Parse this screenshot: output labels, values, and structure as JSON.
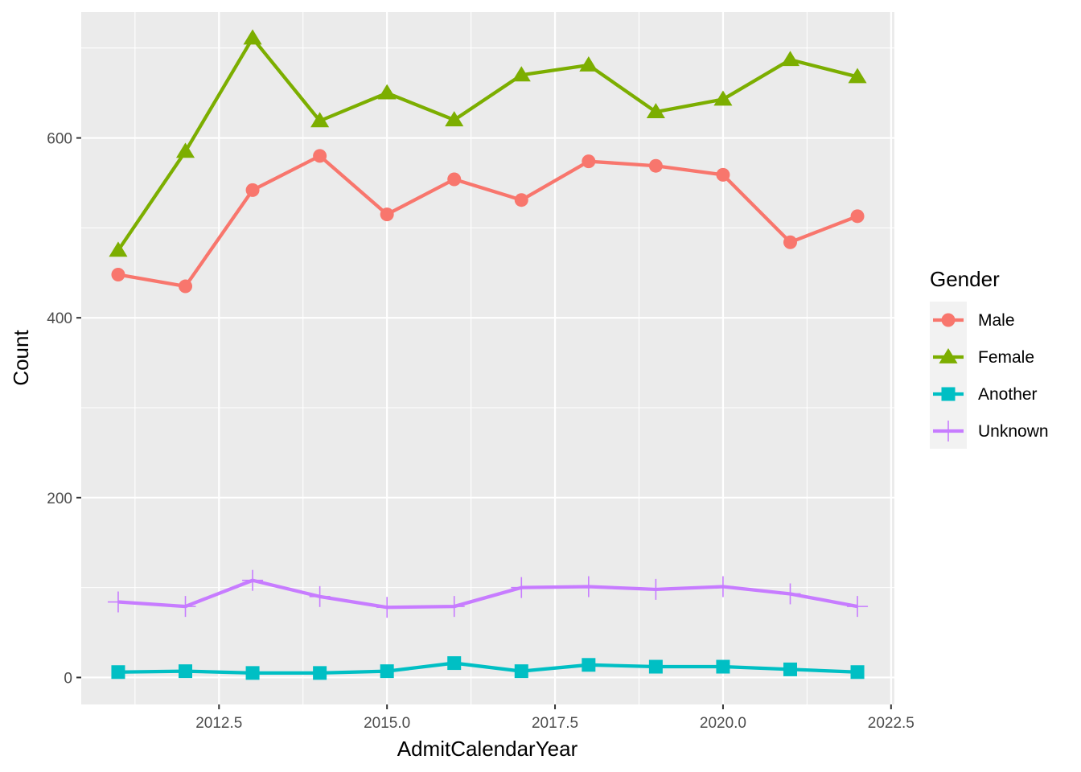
{
  "chart_data": {
    "type": "line",
    "xlabel": "AdmitCalendarYear",
    "ylabel": "Count",
    "xlim": [
      2010.45,
      2022.55
    ],
    "ylim": [
      -30,
      740
    ],
    "x_ticks": [
      2012.5,
      2015.0,
      2017.5,
      2020.0,
      2022.5
    ],
    "x_tick_labels": [
      "2012.5",
      "2015.0",
      "2017.5",
      "2020.0",
      "2022.5"
    ],
    "y_ticks": [
      0,
      200,
      400,
      600
    ],
    "y_tick_labels": [
      "0",
      "200",
      "400",
      "600"
    ],
    "grid": true,
    "legend": {
      "title": "Gender",
      "position": "right"
    },
    "x": [
      2011,
      2012,
      2013,
      2014,
      2015,
      2016,
      2017,
      2018,
      2019,
      2020,
      2021,
      2022
    ],
    "series": [
      {
        "name": "Male",
        "color": "#F8766D",
        "shape": "circle",
        "values": [
          448,
          435,
          542,
          580,
          515,
          554,
          531,
          574,
          569,
          559,
          484,
          513
        ]
      },
      {
        "name": "Female",
        "color": "#7CAE00",
        "shape": "triangle",
        "values": [
          475,
          585,
          711,
          619,
          650,
          620,
          670,
          681,
          629,
          643,
          687,
          668
        ]
      },
      {
        "name": "Another",
        "color": "#00BFC4",
        "shape": "square",
        "values": [
          6,
          7,
          5,
          5,
          7,
          16,
          7,
          14,
          12,
          12,
          9,
          6
        ]
      },
      {
        "name": "Unknown",
        "color": "#C77CFF",
        "shape": "plus",
        "values": [
          84,
          79,
          108,
          90,
          78,
          79,
          100,
          101,
          98,
          101,
          93,
          79
        ]
      }
    ]
  }
}
